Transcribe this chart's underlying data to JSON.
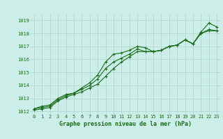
{
  "xlabel": "Graphe pression niveau de la mer (hPa)",
  "background_color": "#cceee8",
  "line_color": "#1a6b1a",
  "grid_color": "#aad4cc",
  "xlim": [
    -0.5,
    23.5
  ],
  "ylim": [
    1011.8,
    1019.5
  ],
  "yticks": [
    1012,
    1013,
    1014,
    1015,
    1016,
    1017,
    1018,
    1019
  ],
  "xticks": [
    0,
    1,
    2,
    3,
    4,
    5,
    6,
    7,
    8,
    9,
    10,
    11,
    12,
    13,
    14,
    15,
    16,
    17,
    18,
    19,
    20,
    21,
    22,
    23
  ],
  "series1": [
    1012.2,
    1012.4,
    1012.5,
    1013.0,
    1013.3,
    1013.4,
    1013.8,
    1014.2,
    1014.8,
    1015.8,
    1016.4,
    1016.5,
    1016.7,
    1017.0,
    1016.9,
    1016.6,
    1016.7,
    1017.0,
    1017.1,
    1017.5,
    1017.2,
    1018.1,
    1018.8,
    1018.5
  ],
  "series2": [
    1012.2,
    1012.3,
    1012.4,
    1012.9,
    1013.2,
    1013.4,
    1013.7,
    1014.0,
    1014.5,
    1015.3,
    1015.8,
    1016.1,
    1016.4,
    1016.8,
    1016.6,
    1016.6,
    1016.7,
    1017.0,
    1017.1,
    1017.5,
    1017.2,
    1018.0,
    1018.3,
    1018.2
  ],
  "series3": [
    1012.1,
    1012.2,
    1012.3,
    1012.8,
    1013.1,
    1013.3,
    1013.5,
    1013.8,
    1014.1,
    1014.7,
    1015.3,
    1015.8,
    1016.2,
    1016.6,
    1016.6,
    1016.6,
    1016.7,
    1017.0,
    1017.1,
    1017.5,
    1017.2,
    1018.0,
    1018.2,
    1018.2
  ],
  "tick_fontsize": 5.0,
  "xlabel_fontsize": 6.0,
  "marker_size": 2.5,
  "line_width": 0.8
}
